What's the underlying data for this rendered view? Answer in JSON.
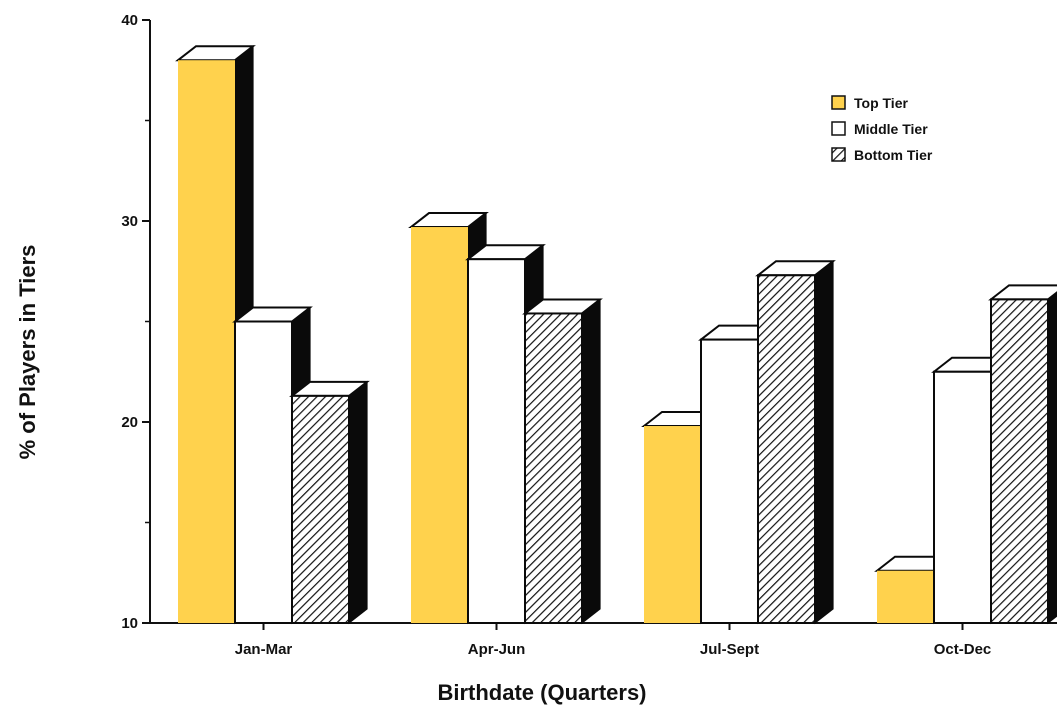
{
  "chart_data": {
    "type": "bar",
    "title": "",
    "xlabel": "Birthdate (Quarters)",
    "ylabel": "% of Players in Tiers",
    "ylim": [
      10,
      40
    ],
    "yticks": [
      10,
      20,
      30,
      40
    ],
    "grid": false,
    "legend_position": "top-right",
    "categories": [
      "Jan-Mar",
      "Apr-Jun",
      "Jul-Sept",
      "Oct-Dec"
    ],
    "series": [
      {
        "name": "Top Tier",
        "values": [
          38,
          29.7,
          19.8,
          12.6
        ],
        "color": "#FFD24D",
        "pattern": "solid"
      },
      {
        "name": "Middle Tier",
        "values": [
          25,
          28.1,
          24.1,
          22.5
        ],
        "color": "#FFFFFF",
        "pattern": "solid"
      },
      {
        "name": "Bottom Tier",
        "values": [
          21.3,
          25.4,
          27.3,
          26.1
        ],
        "color": "#FFFFFF",
        "pattern": "hatched"
      }
    ]
  }
}
